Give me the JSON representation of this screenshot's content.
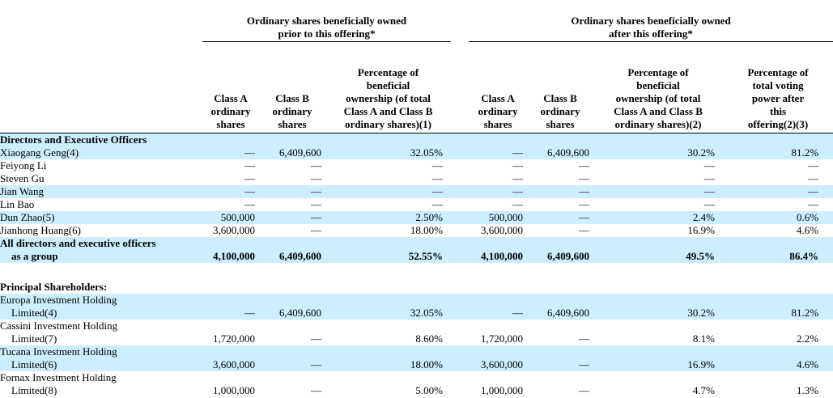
{
  "colors": {
    "row_highlight": "#cceeff",
    "rule": "#000000",
    "text": "#000000",
    "background": "#ffffff"
  },
  "table": {
    "group_headers": [
      {
        "label": "Ordinary shares beneficially owned\nprior to this offering*"
      },
      {
        "label": "Ordinary shares beneficially owned\nafter this offering*"
      }
    ],
    "column_headers": [
      "Class A\nordinary\nshares",
      "Class B\nordinary\nshares",
      "Percentage of\nbeneficial\nownership (of total\nClass A and Class B\nordinary shares)(1)",
      "Class A\nordinary\nshares",
      "Class B\nordinary\nshares",
      "Percentage of\nbeneficial\nownership (of total\nClass A and Class B\nordinary shares)(2)",
      "Percentage of\ntotal voting\npower after\nthis\noffering(2)(3)"
    ],
    "rows": [
      {
        "type": "section",
        "name": "Directors and Executive Officers",
        "highlight": true
      },
      {
        "type": "data",
        "name": "Xiaogang Geng(4)",
        "highlight": true,
        "bold": false,
        "values": [
          "—",
          "6,409,600",
          "32.05%",
          "—",
          "6,409,600",
          "30.2%",
          "81.2%"
        ]
      },
      {
        "type": "data",
        "name": "Feiyong Li",
        "highlight": false,
        "bold": false,
        "values": [
          "—",
          "—",
          "—",
          "—",
          "—",
          "—",
          "—"
        ]
      },
      {
        "type": "data",
        "name": "Steven Gu",
        "highlight": false,
        "bold": false,
        "values": [
          "—",
          "—",
          "—",
          "—",
          "—",
          "—",
          "—"
        ]
      },
      {
        "type": "data",
        "name": "Jian Wang",
        "highlight": true,
        "bold": false,
        "values": [
          "—",
          "—",
          "—",
          "—",
          "—",
          "—",
          "—"
        ]
      },
      {
        "type": "data",
        "name": "Lin Bao",
        "highlight": false,
        "bold": false,
        "values": [
          "—",
          "—",
          "—",
          "—",
          "—",
          "—",
          "—"
        ]
      },
      {
        "type": "data",
        "name": "Dun Zhao(5)",
        "highlight": true,
        "bold": false,
        "values": [
          "500,000",
          "—",
          "2.50%",
          "500,000",
          "—",
          "2.4%",
          "0.6%"
        ]
      },
      {
        "type": "data",
        "name": "Jianhong Huang(6)",
        "highlight": false,
        "bold": false,
        "values": [
          "3,600,000",
          "—",
          "18.00%",
          "3,600,000",
          "—",
          "16.9%",
          "4.6%"
        ]
      },
      {
        "type": "data",
        "name": "All directors and executive officers\nas a group",
        "highlight": true,
        "bold": true,
        "values": [
          "4,100,000",
          "6,409,600",
          "52.55%",
          "4,100,000",
          "6,409,600",
          "49.5%",
          "86.4%"
        ]
      },
      {
        "type": "spacer"
      },
      {
        "type": "section",
        "name": "Principal Shareholders:",
        "highlight": false
      },
      {
        "type": "data",
        "name": "Europa Investment Holding\nLimited(4)",
        "highlight": true,
        "bold": false,
        "values": [
          "—",
          "6,409,600",
          "32.05%",
          "—",
          "6,409,600",
          "30.2%",
          "81.2%"
        ]
      },
      {
        "type": "data",
        "name": "Cassini Investment Holding\nLimited(7)",
        "highlight": false,
        "bold": false,
        "values": [
          "1,720,000",
          "—",
          "8.60%",
          "1,720,000",
          "—",
          "8.1%",
          "2.2%"
        ]
      },
      {
        "type": "data",
        "name": "Tucana Investment Holding\nLimited(6)",
        "highlight": true,
        "bold": false,
        "values": [
          "3,600,000",
          "—",
          "18.00%",
          "3,600,000",
          "—",
          "16.9%",
          "4.6%"
        ]
      },
      {
        "type": "data",
        "name": "Fornax Investment Holding\nLimited(8)",
        "highlight": false,
        "bold": false,
        "values": [
          "1,000,000",
          "—",
          "5.00%",
          "1,000,000",
          "—",
          "4.7%",
          "1.3%"
        ]
      }
    ]
  }
}
